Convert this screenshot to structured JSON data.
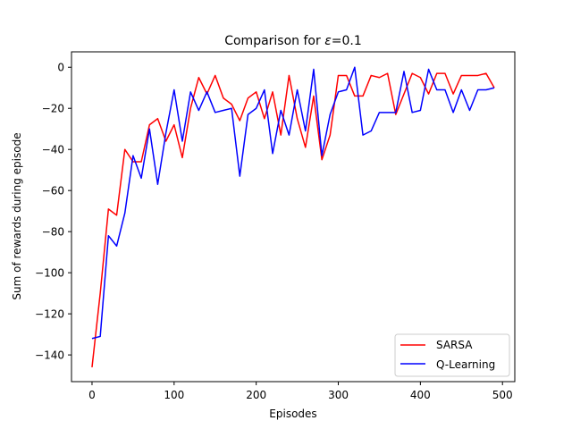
{
  "chart_data": {
    "type": "line",
    "title_prefix": "Comparison for ",
    "title_symbol": "ε",
    "title_suffix": "=0.1",
    "xlabel": "Episodes",
    "ylabel": "Sum of rewards during episode",
    "xlim": [
      -25,
      515
    ],
    "ylim": [
      -153,
      7.5
    ],
    "xticks": [
      0,
      100,
      200,
      300,
      400,
      500
    ],
    "yticks": [
      0,
      -20,
      -40,
      -60,
      -80,
      -100,
      -120,
      -140
    ],
    "grid": false,
    "legend_position": "lower-right",
    "x": [
      0,
      10,
      20,
      30,
      40,
      50,
      60,
      70,
      80,
      90,
      100,
      110,
      120,
      130,
      140,
      150,
      160,
      170,
      180,
      190,
      200,
      210,
      220,
      230,
      240,
      250,
      260,
      270,
      280,
      290,
      300,
      310,
      320,
      330,
      340,
      350,
      360,
      370,
      380,
      390,
      400,
      410,
      420,
      430,
      440,
      450,
      460,
      470,
      480,
      490
    ],
    "series": [
      {
        "name": "SARSA",
        "color": "#ff0000",
        "values": [
          -146,
          -110,
          -69,
          -72,
          -40,
          -46,
          -46,
          -28,
          -25,
          -36,
          -28,
          -44,
          -20,
          -5,
          -13,
          -4,
          -15,
          -18,
          -26,
          -15,
          -12,
          -25,
          -12,
          -33,
          -4,
          -25,
          -39,
          -14,
          -45,
          -33,
          -4,
          -4,
          -14,
          -14,
          -4,
          -5,
          -3,
          -23,
          -13,
          -3,
          -5,
          -13,
          -3,
          -3,
          -13,
          -4,
          -4,
          -4,
          -3,
          -10
        ]
      },
      {
        "name": "Q-Learning",
        "color": "#0000ff",
        "values": [
          -132,
          -131,
          -82,
          -87,
          -71,
          -43,
          -54,
          -30,
          -57,
          -32,
          -11,
          -36,
          -12,
          -21,
          -12,
          -22,
          -21,
          -20,
          -53,
          -23,
          -20,
          -11,
          -42,
          -21,
          -33,
          -11,
          -31,
          -1,
          -43,
          -23,
          -12,
          -11,
          0,
          -33,
          -31,
          -22,
          -22,
          -22,
          -2,
          -22,
          -21,
          -1,
          -11,
          -11,
          -22,
          -11,
          -21,
          -11,
          -11,
          -10
        ]
      }
    ]
  }
}
